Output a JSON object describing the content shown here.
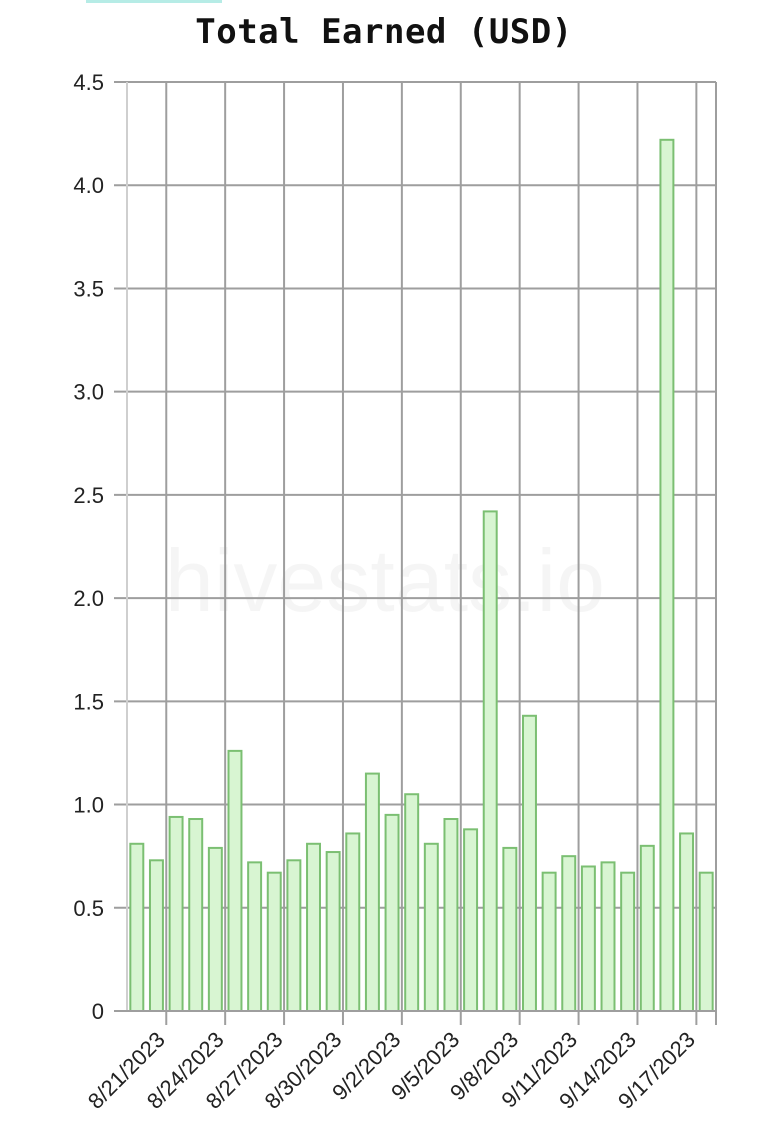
{
  "chart_data": {
    "type": "bar",
    "title": "Total Earned (USD)",
    "watermark": "hivestats.io",
    "xlabel": "",
    "ylabel": "",
    "ylim": [
      0,
      4.5
    ],
    "y_ticks": [
      "0",
      "0.5",
      "1.0",
      "1.5",
      "2.0",
      "2.5",
      "3.0",
      "3.5",
      "4.0",
      "4.5"
    ],
    "x_tick_labels": [
      "8/21/2023",
      "8/24/2023",
      "8/27/2023",
      "8/30/2023",
      "9/2/2023",
      "9/5/2023",
      "9/8/2023",
      "9/11/2023",
      "9/14/2023",
      "9/17/2023"
    ],
    "categories": [
      "8/20/2023",
      "8/21/2023",
      "8/22/2023",
      "8/23/2023",
      "8/24/2023",
      "8/25/2023",
      "8/26/2023",
      "8/27/2023",
      "8/28/2023",
      "8/29/2023",
      "8/30/2023",
      "8/31/2023",
      "9/1/2023",
      "9/2/2023",
      "9/3/2023",
      "9/4/2023",
      "9/5/2023",
      "9/6/2023",
      "9/7/2023",
      "9/8/2023",
      "9/9/2023",
      "9/10/2023",
      "9/11/2023",
      "9/12/2023",
      "9/13/2023",
      "9/14/2023",
      "9/15/2023",
      "9/16/2023",
      "9/17/2023",
      "9/18/2023"
    ],
    "values": [
      0.81,
      0.73,
      0.94,
      0.93,
      0.79,
      1.26,
      0.72,
      0.67,
      0.73,
      0.81,
      0.77,
      0.86,
      1.15,
      0.95,
      1.05,
      0.81,
      0.93,
      0.88,
      2.42,
      0.79,
      1.43,
      0.67,
      0.75,
      0.7,
      0.72,
      0.67,
      0.8,
      4.22,
      0.86,
      0.67
    ],
    "grid": true,
    "colors": {
      "bar_fill": "#d8f5d2",
      "bar_stroke": "#7bbf72",
      "grid": "#9e9e9e",
      "top_strip": "#b6ece6"
    }
  }
}
